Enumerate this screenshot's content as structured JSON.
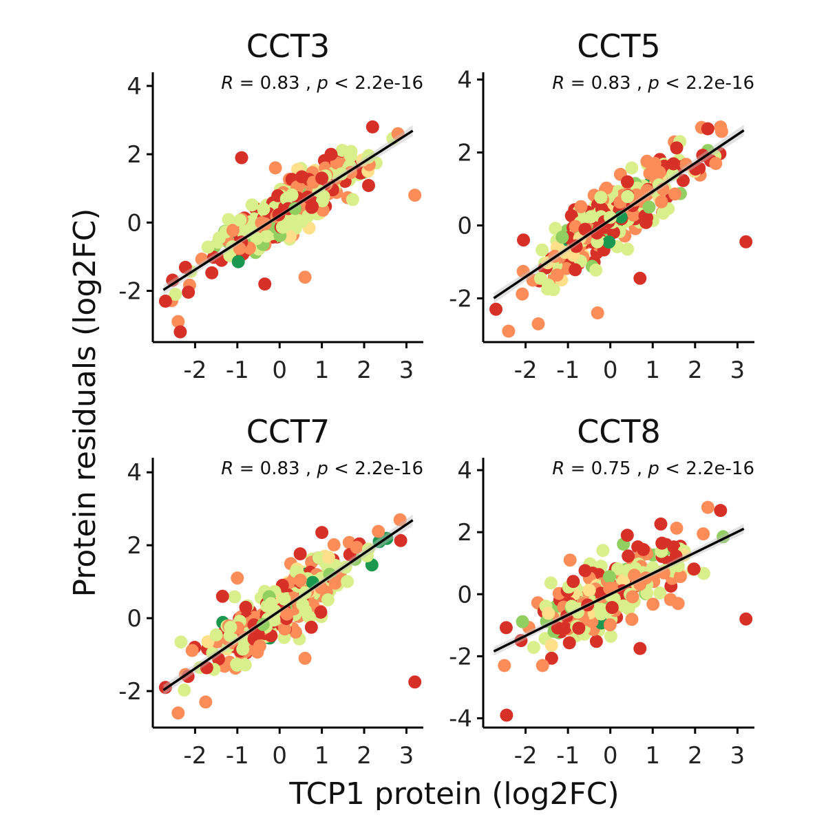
{
  "figure": {
    "x_axis_title": "TCP1 protein (log2FC)",
    "y_axis_title": "Protein residuals (log2FC)"
  },
  "colors": {
    "palette": [
      "#d73027",
      "#fc8d59",
      "#fee08b",
      "#d9ef8b",
      "#91cf60",
      "#1a9850"
    ],
    "fit_line": "#000000",
    "ci_band": "#bdbdbd"
  },
  "chart_data": [
    {
      "type": "scatter",
      "title": "CCT3",
      "annotation": {
        "r_label": "R",
        "r_value": "= 0.83 ,",
        "p_label": "p",
        "p_value": "< 2.2e-16"
      },
      "xlim": [
        -3,
        3.4
      ],
      "ylim": [
        -3.5,
        4.4
      ],
      "xticks": [
        -2,
        -1,
        0,
        1,
        2,
        3
      ],
      "yticks": [
        -2,
        0,
        2,
        4
      ],
      "fit": {
        "intercept": 0.2,
        "slope": 0.79
      },
      "n_points": 300,
      "noise_sd": 0.4,
      "anchor_points": [
        [
          -2.7,
          -2.3
        ],
        [
          -2.4,
          -2.9
        ],
        [
          -2.35,
          -3.2
        ],
        [
          3.2,
          0.8
        ],
        [
          -0.9,
          1.9
        ],
        [
          -0.1,
          1.6
        ],
        [
          -0.35,
          -1.8
        ],
        [
          0.6,
          -1.6
        ],
        [
          2.2,
          2.8
        ],
        [
          2.8,
          2.6
        ],
        [
          1.0,
          1.3
        ]
      ]
    },
    {
      "type": "scatter",
      "title": "CCT5",
      "annotation": {
        "r_label": "R",
        "r_value": "= 0.83 ,",
        "p_label": "p",
        "p_value": "< 2.2e-16"
      },
      "xlim": [
        -3,
        3.4
      ],
      "ylim": [
        -3.2,
        4.2
      ],
      "xticks": [
        -2,
        -1,
        0,
        1,
        2,
        3
      ],
      "yticks": [
        -2,
        0,
        2,
        4
      ],
      "fit": {
        "intercept": 0.15,
        "slope": 0.78
      },
      "n_points": 300,
      "noise_sd": 0.45,
      "anchor_points": [
        [
          -2.7,
          -2.3
        ],
        [
          -2.4,
          -2.9
        ],
        [
          -2.05,
          -0.4
        ],
        [
          -1.7,
          -2.7
        ],
        [
          3.2,
          -0.45
        ],
        [
          -0.3,
          -2.4
        ],
        [
          0.7,
          -1.45
        ],
        [
          2.6,
          2.7
        ],
        [
          2.3,
          2.65
        ],
        [
          1.05,
          1.7
        ]
      ]
    },
    {
      "type": "scatter",
      "title": "CCT7",
      "annotation": {
        "r_label": "R",
        "r_value": "= 0.83 ,",
        "p_label": "p",
        "p_value": "< 2.2e-16"
      },
      "xlim": [
        -3,
        3.4
      ],
      "ylim": [
        -3,
        4.4
      ],
      "xticks": [
        -2,
        -1,
        0,
        1,
        2,
        3
      ],
      "yticks": [
        -2,
        0,
        2,
        4
      ],
      "fit": {
        "intercept": 0.2,
        "slope": 0.79
      },
      "n_points": 300,
      "noise_sd": 0.4,
      "anchor_points": [
        [
          -2.7,
          -1.9
        ],
        [
          -2.4,
          -2.6
        ],
        [
          3.2,
          -1.75
        ],
        [
          -1.0,
          1.1
        ],
        [
          -1.35,
          0.6
        ],
        [
          0.6,
          -1.1
        ],
        [
          1.0,
          2.35
        ],
        [
          2.85,
          2.7
        ],
        [
          0.75,
          -0.25
        ],
        [
          -1.75,
          -2.3
        ]
      ]
    },
    {
      "type": "scatter",
      "title": "CCT8",
      "annotation": {
        "r_label": "R",
        "r_value": "= 0.75 ,",
        "p_label": "p",
        "p_value": "< 2.2e-16"
      },
      "xlim": [
        -3,
        3.4
      ],
      "ylim": [
        -4.3,
        4.4
      ],
      "xticks": [
        -2,
        -1,
        0,
        1,
        2,
        3
      ],
      "yticks": [
        -4,
        -2,
        0,
        2,
        4
      ],
      "fit": {
        "intercept": 0.0,
        "slope": 0.67
      },
      "n_points": 300,
      "noise_sd": 0.5,
      "anchor_points": [
        [
          -2.45,
          -3.9
        ],
        [
          -2.5,
          -2.3
        ],
        [
          3.2,
          -0.8
        ],
        [
          -1.6,
          -2.3
        ],
        [
          0.7,
          -1.75
        ],
        [
          2.3,
          2.8
        ],
        [
          2.6,
          2.7
        ],
        [
          -0.95,
          1.1
        ],
        [
          0.4,
          1.9
        ],
        [
          1.6,
          -0.3
        ]
      ]
    }
  ]
}
